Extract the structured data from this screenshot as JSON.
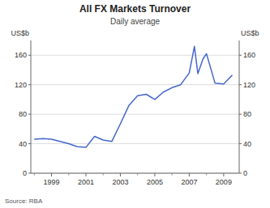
{
  "chart_data": {
    "type": "line",
    "title": "All FX Markets Turnover",
    "subtitle": "Daily average",
    "ylabel": "US$b",
    "y2label": "US$b",
    "source": "Source: RBA",
    "color": "#4466cc",
    "grid": true,
    "x": [
      1998.0,
      1998.5,
      1999.0,
      1999.5,
      2000.0,
      2000.5,
      2001.0,
      2001.5,
      2002.0,
      2002.5,
      2003.0,
      2003.5,
      2004.0,
      2004.5,
      2005.0,
      2005.5,
      2006.0,
      2006.5,
      2007.0,
      2007.3,
      2007.5,
      2007.8,
      2008.0,
      2008.5,
      2009.0,
      2009.5
    ],
    "values": [
      46,
      47,
      46,
      43,
      40,
      36,
      35,
      50,
      45,
      43,
      67,
      92,
      105,
      107,
      100,
      110,
      116,
      120,
      136,
      172,
      135,
      155,
      162,
      122,
      121,
      133
    ],
    "xlim": [
      1997.8,
      2009.9
    ],
    "xticks": [
      1999,
      2001,
      2003,
      2005,
      2007,
      2009
    ],
    "xminor_ticks": [
      1998,
      2000,
      2002,
      2004,
      2006,
      2008
    ],
    "ylim": [
      0,
      180
    ],
    "yticks": [
      0,
      40,
      80,
      120,
      160
    ],
    "y2lim": [
      0,
      180
    ],
    "y2ticks": [
      0,
      40,
      80,
      120,
      160
    ]
  }
}
